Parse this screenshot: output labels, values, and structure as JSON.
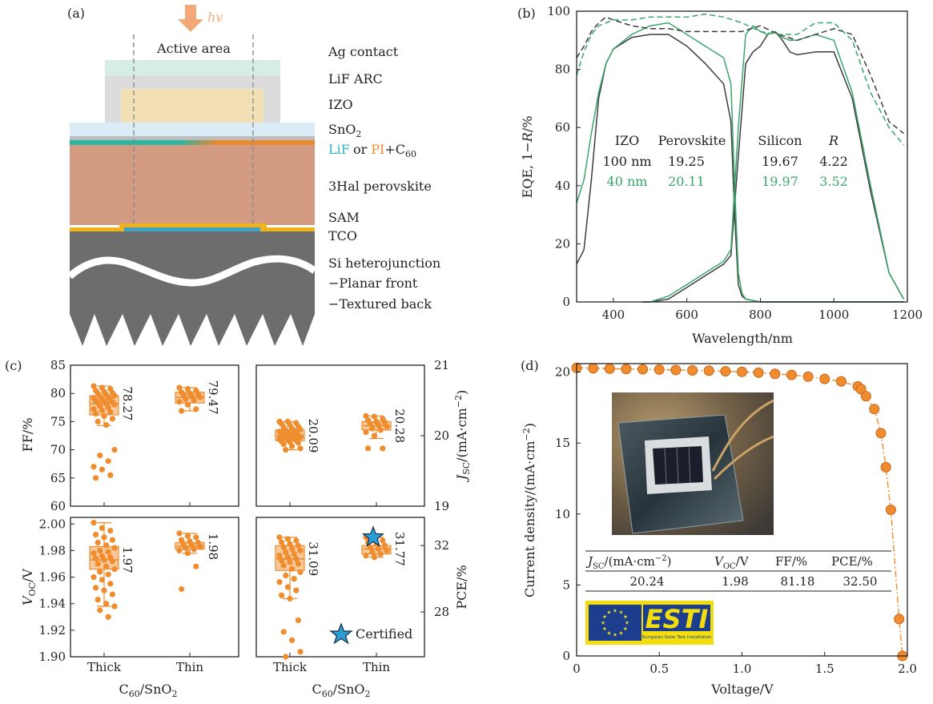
{
  "colors": {
    "orange": "#ef8c2e",
    "green": "#3aa66b",
    "dark": "#3d3d3d",
    "orange_fill": "#f8c99a",
    "esti_blue": "#1d3d8f",
    "esti_yellow": "#f2dd10"
  },
  "panel_labels": {
    "a": "(a)",
    "b": "(b)",
    "c": "(c)",
    "d": "(d)"
  },
  "panel_a": {
    "hv": "hv",
    "active_area": "Active area",
    "layers": [
      "Ag contact",
      "LiF ARC",
      "IZO",
      "SnO",
      "2",
      "LiF",
      "or",
      "PI",
      "+C",
      "60",
      "3Hal perovskite",
      "SAM",
      "TCO",
      "Si heterojunction",
      "−Planar front",
      "−Textured back"
    ]
  },
  "panel_b": {
    "table": {
      "headers": [
        "IZO",
        "Perovskite",
        "Silicon",
        "R"
      ],
      "rows": [
        [
          "100 nm",
          "19.25",
          "19.67",
          "4.22"
        ],
        [
          "40 nm",
          "20.11",
          "19.97",
          "3.52"
        ]
      ]
    }
  },
  "panel_c": {
    "certified": "Certified",
    "xlabel": {
      "base": "C",
      "sub1": "60",
      "mid": "/SnO",
      "sub2": "2"
    },
    "categories": [
      "Thick",
      "Thin"
    ],
    "ff_label": "FF/%",
    "voc_label": {
      "base": "V",
      "sub": "OC",
      "unit": "/V"
    },
    "jsc_label": {
      "base": "J",
      "sub": "SC",
      "unit": "/(mA·cm",
      "sup": "−2",
      "end": ")"
    },
    "pce_label": "PCE/%"
  },
  "panel_d": {
    "ylabel": {
      "main": "Current density/(mA·cm",
      "sup": "−2",
      "end": ")"
    },
    "xlabel": "Voltage/V",
    "table": {
      "h_jsc": {
        "base": "J",
        "sub": "SC",
        "unit": "/(mA·cm",
        "sup": "−2",
        "end": ")"
      },
      "h_voc": {
        "base": "V",
        "sub": "OC",
        "unit": "/V"
      },
      "h_ff": "FF/%",
      "h_pce": "PCE/%",
      "values": [
        "20.24",
        "1.98",
        "81.18",
        "32.50"
      ]
    },
    "logo_text": "ESTI",
    "logo_subtext": "European Solar Test Installation"
  },
  "chart_data": [
    {
      "type": "line",
      "panel": "b",
      "xlabel": "Wavelength/nm",
      "ylabel": "EQE, 1−R/%",
      "xlim": [
        300,
        1200
      ],
      "ylim": [
        0,
        100
      ],
      "xticks": [
        400,
        600,
        800,
        1000,
        1200
      ],
      "yticks": [
        0,
        20,
        40,
        60,
        80,
        100
      ],
      "series": [
        {
          "color": "dark",
          "style": "solid",
          "x": [
            300,
            320,
            340,
            360,
            380,
            400,
            450,
            500,
            550,
            600,
            650,
            700,
            720,
            730,
            740,
            750,
            760,
            780,
            800,
            850,
            900,
            950,
            1000,
            1050,
            1100,
            1150,
            1190
          ],
          "y": [
            13,
            18,
            42,
            70,
            82,
            87,
            91,
            92,
            92,
            88,
            82,
            75,
            62,
            30,
            6,
            2,
            1,
            0.5,
            0,
            0,
            0,
            0,
            0,
            0,
            0,
            0,
            0
          ]
        },
        {
          "color": "dark",
          "style": "solid",
          "x": [
            480,
            500,
            550,
            600,
            650,
            700,
            720,
            740,
            760,
            780,
            800,
            820,
            840,
            860,
            880,
            900,
            950,
            1000,
            1050,
            1100,
            1150,
            1190
          ],
          "y": [
            0,
            0,
            1,
            5,
            9,
            13,
            16,
            50,
            82,
            86,
            88,
            92,
            93,
            90,
            86,
            85,
            86,
            86,
            70,
            38,
            10,
            1
          ]
        },
        {
          "color": "green",
          "style": "solid",
          "x": [
            300,
            320,
            340,
            360,
            380,
            400,
            450,
            500,
            550,
            600,
            650,
            700,
            720,
            730,
            740,
            750,
            760,
            780,
            800,
            850,
            900,
            950,
            1000,
            1050,
            1100,
            1150,
            1190
          ],
          "y": [
            34,
            42,
            58,
            72,
            82,
            87,
            92,
            95,
            96,
            92,
            88,
            84,
            75,
            40,
            10,
            3,
            1,
            0.5,
            0,
            0,
            0,
            0,
            0,
            0,
            0,
            0,
            0
          ]
        },
        {
          "color": "green",
          "style": "solid",
          "x": [
            480,
            500,
            550,
            600,
            650,
            700,
            720,
            740,
            760,
            780,
            800,
            820,
            840,
            860,
            880,
            900,
            950,
            1000,
            1050,
            1100,
            1150,
            1190
          ],
          "y": [
            0,
            0,
            2,
            6,
            10,
            14,
            18,
            60,
            92,
            95,
            93,
            92,
            93,
            91,
            90,
            90,
            92,
            90,
            72,
            40,
            10,
            1
          ]
        },
        {
          "color": "dark",
          "style": "dashed",
          "x": [
            300,
            320,
            340,
            360,
            380,
            400,
            450,
            500,
            550,
            600,
            650,
            700,
            750,
            800,
            850,
            900,
            950,
            1000,
            1050,
            1100,
            1150,
            1190
          ],
          "y": [
            84,
            88,
            93,
            96,
            98,
            97,
            95,
            94,
            94,
            93,
            93,
            93,
            93,
            95,
            92,
            90,
            92,
            94,
            92,
            78,
            62,
            58
          ]
        },
        {
          "color": "green",
          "style": "dashed",
          "x": [
            300,
            320,
            340,
            360,
            380,
            400,
            450,
            500,
            550,
            600,
            650,
            700,
            750,
            800,
            850,
            900,
            950,
            1000,
            1050,
            1100,
            1150,
            1190
          ],
          "y": [
            78,
            86,
            92,
            95,
            96,
            97,
            97,
            98,
            98,
            98,
            99,
            98,
            96,
            93,
            92,
            92,
            96,
            96,
            90,
            72,
            60,
            54
          ]
        }
      ]
    },
    {
      "type": "box",
      "panel": "c",
      "subplots": [
        {
          "metric": "FF",
          "ylim": [
            60,
            85
          ],
          "yticks": [
            60,
            65,
            70,
            75,
            80,
            85
          ],
          "axis": "left",
          "groups": [
            {
              "category": "Thick",
              "whisker": [
                74.3,
                81.3
              ],
              "box": [
                76.2,
                79.6
              ],
              "median": 78.2,
              "label": "78.27",
              "points": [
                81.3,
                81.0,
                80.8,
                80.5,
                80.3,
                80.1,
                80.0,
                79.8,
                79.6,
                79.5,
                79.3,
                79.2,
                79.0,
                78.9,
                78.7,
                78.6,
                78.5,
                78.3,
                78.2,
                78.0,
                77.8,
                77.5,
                77.2,
                77.0,
                76.7,
                76.4,
                76.0,
                75.5,
                75.0,
                74.4,
                70.0,
                69.0,
                68.0,
                67.0,
                66.5,
                65.5,
                65.0
              ]
            },
            {
              "category": "Thin",
              "whisker": [
                76.9,
                81.0
              ],
              "box": [
                78.3,
                80.2
              ],
              "median": 79.3,
              "label": "79.47",
              "points": [
                81.0,
                80.8,
                80.5,
                80.2,
                80.0,
                79.9,
                79.7,
                79.5,
                79.3,
                79.0,
                78.8,
                78.5,
                78.0,
                77.2,
                76.9
              ]
            }
          ]
        },
        {
          "metric": "JSC",
          "ylim": [
            19,
            21
          ],
          "yticks": [
            19,
            20,
            21
          ],
          "axis": "right",
          "groups": [
            {
              "category": "Thick",
              "whisker": [
                19.8,
                20.2
              ],
              "box": [
                19.93,
                20.08
              ],
              "median": 20.0,
              "label": "20.09",
              "points": [
                20.2,
                20.2,
                20.18,
                20.17,
                20.15,
                20.13,
                20.12,
                20.1,
                20.09,
                20.08,
                20.07,
                20.06,
                20.05,
                20.04,
                20.03,
                20.02,
                20.01,
                20.0,
                19.99,
                19.98,
                19.97,
                19.96,
                19.95,
                19.94,
                19.93,
                19.92,
                19.91,
                19.9,
                19.88,
                19.85,
                19.82,
                19.8
              ]
            },
            {
              "category": "Thin",
              "whisker": [
                19.96,
                20.28
              ],
              "box": [
                20.08,
                20.2
              ],
              "median": 20.14,
              "label": "20.28",
              "points": [
                20.28,
                20.27,
                20.24,
                20.22,
                20.2,
                20.19,
                20.17,
                20.15,
                20.13,
                20.1,
                20.08,
                20.05,
                20.0,
                19.82,
                19.82
              ]
            }
          ]
        },
        {
          "metric": "VOC",
          "ylim": [
            1.9,
            2.005
          ],
          "yticks": [
            1.9,
            1.92,
            1.94,
            1.96,
            1.98,
            2.0
          ],
          "axis": "left",
          "groups": [
            {
              "category": "Thick",
              "whisker": [
                1.938,
                2.001
              ],
              "box": [
                1.966,
                1.983
              ],
              "median": 1.973,
              "label": "1.97",
              "points": [
                2.001,
                1.997,
                1.995,
                1.992,
                1.99,
                1.988,
                1.986,
                1.984,
                1.982,
                1.98,
                1.979,
                1.978,
                1.976,
                1.975,
                1.974,
                1.973,
                1.972,
                1.97,
                1.968,
                1.966,
                1.964,
                1.962,
                1.96,
                1.958,
                1.955,
                1.952,
                1.95,
                1.947,
                1.943,
                1.94,
                1.938,
                1.935,
                1.93
              ]
            },
            {
              "category": "Thin",
              "whisker": [
                1.978,
                1.993
              ],
              "box": [
                1.981,
                1.986
              ],
              "median": 1.983,
              "label": "1.98",
              "points": [
                1.993,
                1.991,
                1.99,
                1.988,
                1.987,
                1.986,
                1.985,
                1.984,
                1.983,
                1.982,
                1.981,
                1.98,
                1.978,
                1.968,
                1.951
              ]
            }
          ]
        },
        {
          "metric": "PCE",
          "ylim": [
            25.3,
            33.7
          ],
          "yticks": [
            28,
            32
          ],
          "axis": "right",
          "groups": [
            {
              "category": "Thick",
              "whisker": [
                28.8,
                32.5
              ],
              "box": [
                30.5,
                32.0
              ],
              "median": 31.2,
              "label": "31.09",
              "points": [
                32.5,
                32.4,
                32.3,
                32.2,
                32.1,
                32.0,
                31.9,
                31.8,
                31.7,
                31.6,
                31.5,
                31.4,
                31.3,
                31.2,
                31.1,
                31.0,
                30.9,
                30.8,
                30.6,
                30.4,
                30.2,
                30.0,
                29.8,
                29.5,
                29.3,
                29.0,
                28.8,
                27.5,
                26.8,
                26.3,
                25.6,
                25.3
              ]
            },
            {
              "category": "Thin",
              "whisker": [
                31.3,
                32.5
              ],
              "box": [
                31.5,
                32.0
              ],
              "median": 31.8,
              "label": "31.77",
              "points": [
                32.5,
                32.4,
                32.3,
                32.2,
                32.1,
                32.0,
                31.9,
                31.8,
                31.7,
                31.6,
                31.5,
                31.4,
                31.3
              ]
            }
          ]
        }
      ],
      "certified_point": {
        "category": "Thin",
        "metric": "PCE",
        "value": 32.5
      }
    },
    {
      "type": "line",
      "panel": "d",
      "xlabel": "Voltage/V",
      "xlim": [
        0,
        2.0
      ],
      "ylim": [
        0,
        20.6
      ],
      "xticks": [
        0,
        0.5,
        1.0,
        1.5,
        2.0
      ],
      "yticks": [
        0,
        5,
        10,
        15,
        20
      ],
      "series": [
        {
          "color": "orange",
          "style": "dash-dot",
          "markers": true,
          "x": [
            0,
            0.1,
            0.2,
            0.3,
            0.4,
            0.5,
            0.6,
            0.7,
            0.8,
            0.9,
            1.0,
            1.1,
            1.2,
            1.3,
            1.4,
            1.5,
            1.6,
            1.7,
            1.72,
            1.75,
            1.8,
            1.84,
            1.87,
            1.9,
            1.95,
            1.97
          ],
          "y": [
            20.3,
            20.27,
            20.24,
            20.22,
            20.2,
            20.18,
            20.15,
            20.12,
            20.1,
            20.06,
            20.02,
            19.96,
            19.88,
            19.8,
            19.68,
            19.52,
            19.35,
            19.0,
            18.8,
            18.3,
            17.4,
            15.7,
            13.3,
            10.3,
            2.6,
            0.0
          ]
        }
      ]
    }
  ]
}
